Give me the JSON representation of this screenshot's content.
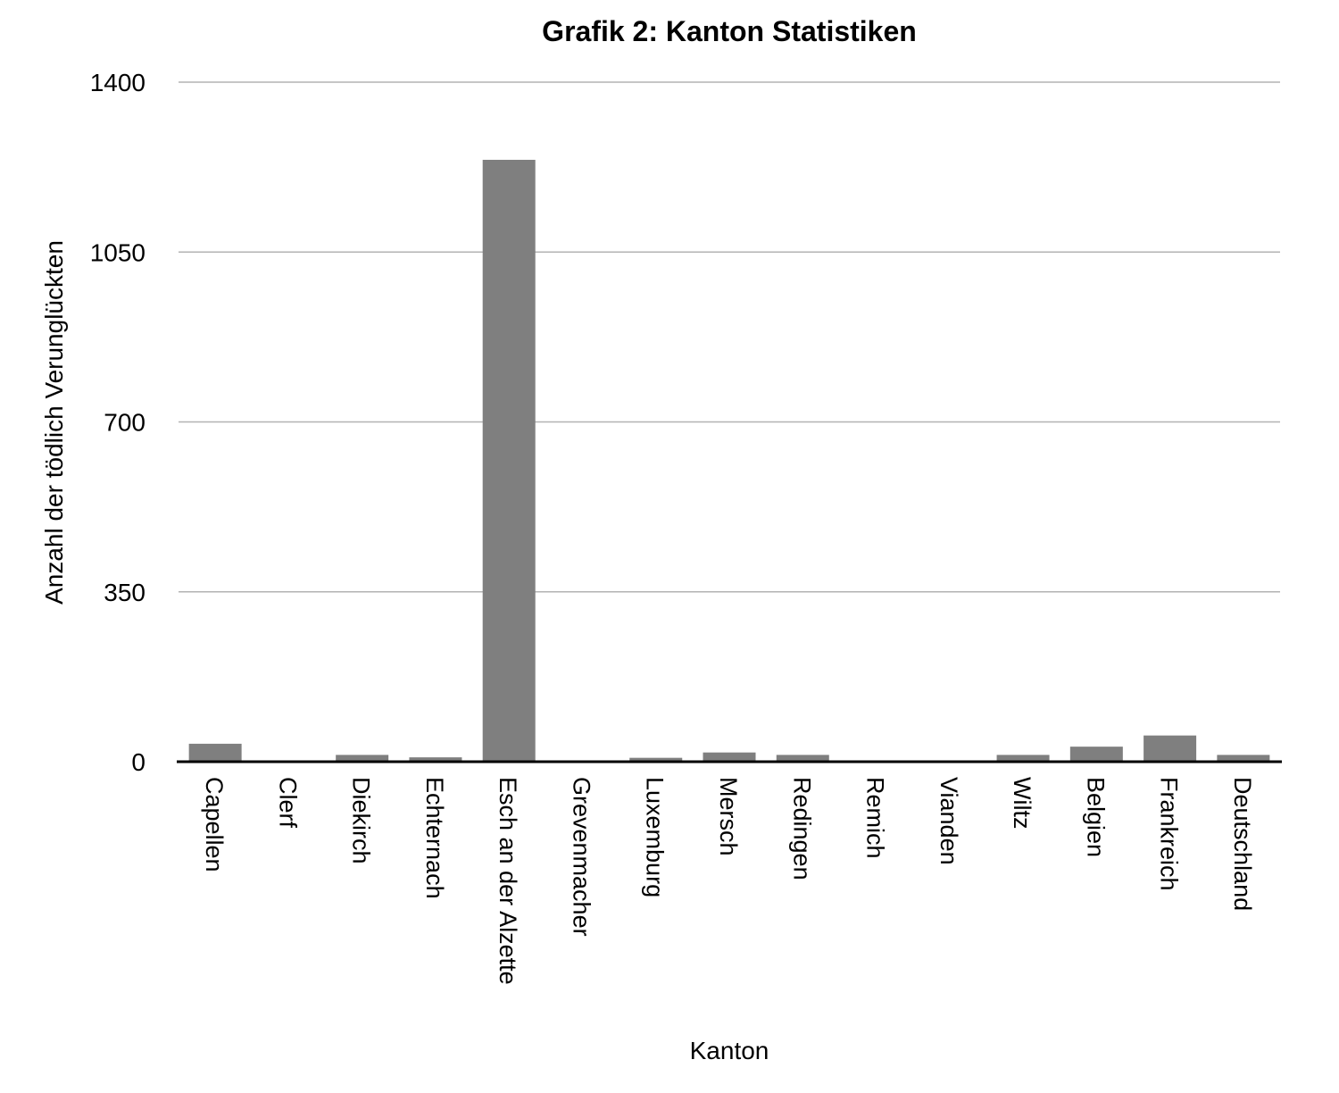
{
  "chart_data": {
    "type": "bar",
    "title": "Grafik 2: Kanton Statistiken",
    "xlabel": "Kanton",
    "ylabel": "Anzahl der tödlich Verunglückten",
    "ylim": [
      0,
      1400
    ],
    "yticks": [
      0,
      350,
      700,
      1050,
      1400
    ],
    "grid": true,
    "legend": "none",
    "bar_color": "#7f7f7f",
    "categories": [
      "Capellen",
      "Clerf",
      "Diekirch",
      "Echternach",
      "Esch an der Alzette",
      "Grevenmacher",
      "Luxemburg",
      "Mersch",
      "Redingen",
      "Remich",
      "Vianden",
      "Wiltz",
      "Belgien",
      "Frankreich",
      "Deutschland"
    ],
    "values": [
      37,
      0,
      14,
      9,
      1240,
      0,
      8,
      19,
      14,
      0,
      0,
      14,
      31,
      54,
      14
    ]
  }
}
